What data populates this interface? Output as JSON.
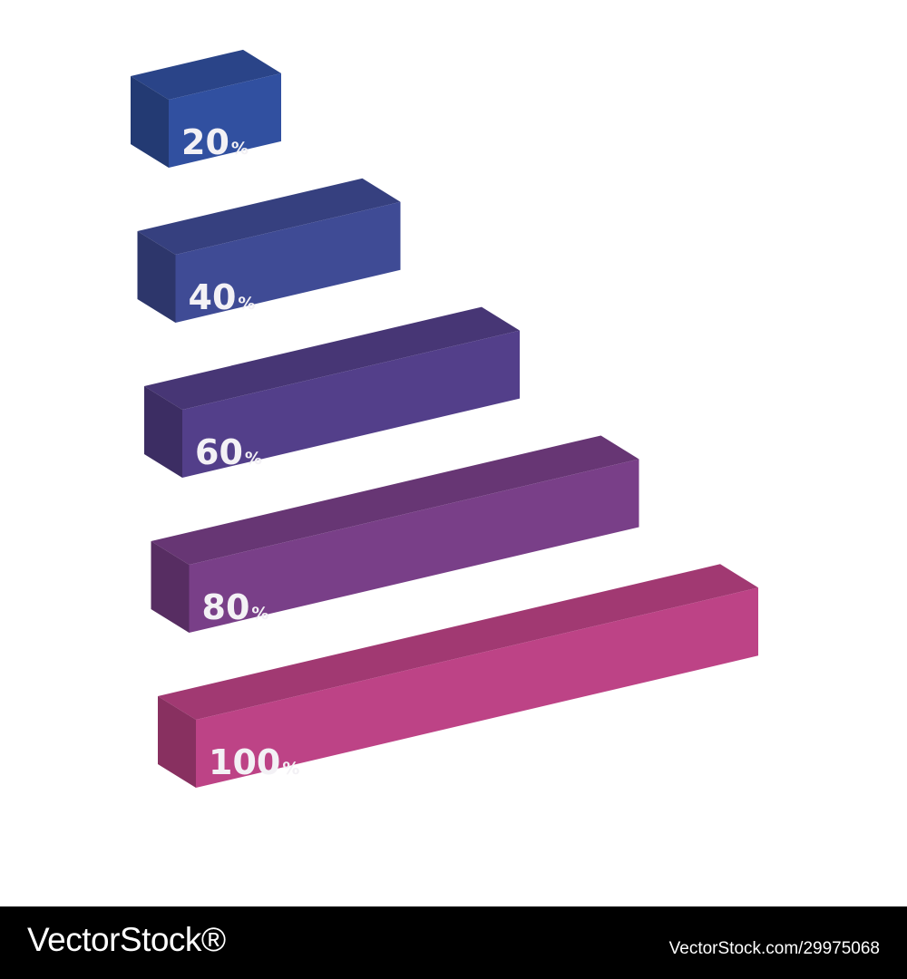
{
  "chart_data": {
    "type": "bar",
    "orientation": "horizontal",
    "style": "3d-isometric",
    "values": [
      20,
      40,
      60,
      80,
      100
    ],
    "labels": [
      "20%",
      "40%",
      "60%",
      "80%",
      "100%"
    ],
    "colors": [
      "#3150a0",
      "#3f4b95",
      "#533f8a",
      "#793f88",
      "#bd4386"
    ],
    "grid": false,
    "legend": "none"
  },
  "footer": {
    "brand": "VectorStock®",
    "image_id": "VectorStock.com/29975068"
  }
}
